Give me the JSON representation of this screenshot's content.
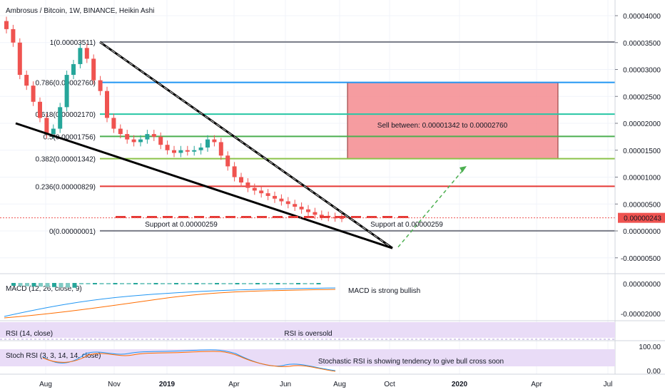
{
  "chart_data": {
    "type": "candlestick",
    "title": "Ambrosus / Bitcoin, 1W, BINANCE, Heikin Ashi",
    "y_ticks": [
      "0.00004000",
      "0.00003500",
      "0.00003000",
      "0.00002500",
      "0.00002000",
      "0.00001500",
      "0.00001000",
      "0.00000500",
      "0.00000000",
      "-0.00000500"
    ],
    "y_tick_values": [
      4e-05,
      3.5e-05,
      3e-05,
      2.5e-05,
      2e-05,
      1.5e-05,
      1e-05,
      5e-06,
      0,
      -5e-06
    ],
    "x_ticks": [
      "Aug",
      "Nov",
      "2019",
      "Apr",
      "Jun",
      "Aug",
      "Oct",
      "2020",
      "Apr",
      "Jul"
    ],
    "last_price": "0.00000243",
    "fib_levels": [
      {
        "label": "1(0.00003511)",
        "value": 3.511e-05,
        "color": "#787b86"
      },
      {
        "label": "0.786(0.00002760)",
        "value": 2.76e-05,
        "color": "#2196f3"
      },
      {
        "label": "0.618(0.00002170)",
        "value": 2.17e-05,
        "color": "#26c6a4"
      },
      {
        "label": "0.5(0.00001756)",
        "value": 1.756e-05,
        "color": "#4caf50"
      },
      {
        "label": "0.382(0.00001342)",
        "value": 1.342e-05,
        "color": "#8bc34a"
      },
      {
        "label": "0.236(0.00000829)",
        "value": 8.29e-06,
        "color": "#e53935"
      },
      {
        "label": "0(0.00000001)",
        "value": 1e-08,
        "color": "#787b86"
      }
    ],
    "candles_close": [
      3.75e-05,
      3.5e-05,
      2.9e-05,
      2.7e-05,
      2.4e-05,
      2.1e-05,
      1.8e-05,
      1.9e-05,
      2.3e-05,
      2.9e-05,
      3.1e-05,
      3.4e-05,
      3.2e-05,
      2.8e-05,
      2.6e-05,
      2.1e-05,
      1.9e-05,
      1.8e-05,
      1.7e-05,
      1.65e-05,
      1.7e-05,
      1.8e-05,
      1.75e-05,
      1.6e-05,
      1.5e-05,
      1.45e-05,
      1.5e-05,
      1.48e-05,
      1.5e-05,
      1.55e-05,
      1.7e-05,
      1.65e-05,
      1.4e-05,
      1.2e-05,
      1e-05,
      9e-06,
      8e-06,
      7.5e-06,
      7e-06,
      6.5e-06,
      6e-06,
      5.5e-06,
      5e-06,
      4.5e-06,
      4e-06,
      3.5e-06,
      3e-06,
      2.8e-06,
      2.6e-06,
      2.5e-06,
      2.43e-06
    ],
    "annotations": {
      "sell_zone": "Sell between: 0.00001342 to 0.00002760",
      "support_left": "Support at 0.00000259",
      "support_right": "Support at 0.00000259",
      "macd_note": "MACD is strong bullish",
      "rsi_note": "RSI is oversold",
      "stoch_note": "Stochastic RSI is showing tendency to give bull cross soon"
    },
    "indicators": {
      "macd": {
        "title": "MACD (12, 26, close, 9)",
        "ticks": [
          "0.00000000",
          "-0.00002000"
        ]
      },
      "rsi": {
        "title": "RSI (14, close)"
      },
      "stoch": {
        "title": "Stoch RSI (3, 3, 14, 14, close)",
        "ticks": [
          "100.00",
          "0.00"
        ]
      }
    }
  }
}
